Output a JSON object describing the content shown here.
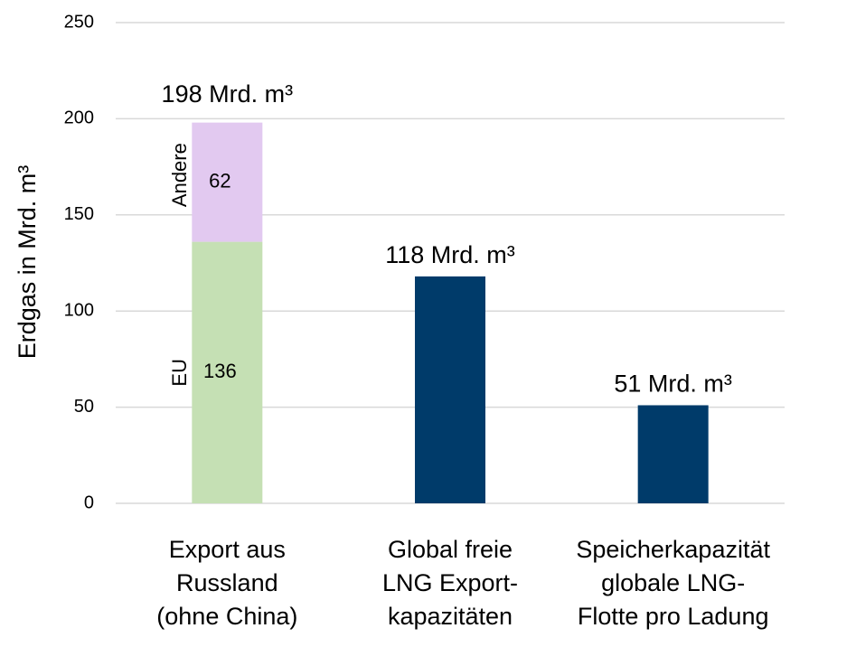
{
  "chart_data": {
    "type": "stacked_bar",
    "y_label": "Erdgas in Mrd. m³",
    "categories": [
      [
        "Export aus",
        "Russland",
        "(ohne China)"
      ],
      [
        "Global freie",
        "LNG Export-",
        "kapazitäten"
      ],
      [
        "Speicherkapazität",
        "globale LNG-",
        "Flotte pro Ladung"
      ]
    ],
    "series": [
      {
        "name": "EU",
        "color": "#c5e0b4",
        "values": [
          136,
          null,
          null
        ]
      },
      {
        "name": "Andere",
        "color": "#e2c9f0",
        "values": [
          62,
          null,
          null
        ]
      },
      {
        "color": "#003b6a",
        "values": [
          null,
          118,
          51
        ],
        "value_labels": [
          null,
          "118 Mrd. m³",
          "51 Mrd. m³"
        ]
      }
    ],
    "totals": [
      198,
      null,
      null
    ],
    "total_labels": [
      "198 Mrd. m³",
      null,
      null
    ],
    "ylim": [
      0,
      250
    ],
    "yticks": [
      0,
      50,
      100,
      150,
      200,
      250
    ],
    "grid": true
  }
}
